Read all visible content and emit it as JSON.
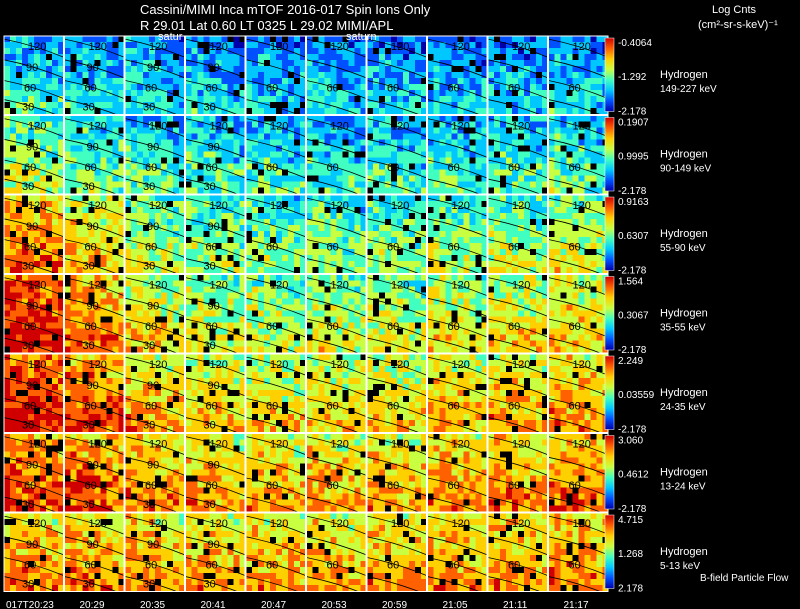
{
  "header": {
    "line1": "Cassini/MIMI Inca mTOF  2016-017   Spin   Ions Only",
    "line2": "R         29.01 Lat 0.60 LT 0325 L          29.02  MIMI/APL",
    "saturn_label": "satur",
    "saturn_label2": "saturn",
    "units_title": "Log Cnts",
    "units": "(cm²-sr-s-keV)⁻¹"
  },
  "footer": {
    "legend_note": "B-field Particle Flow"
  },
  "colors": {
    "background": "#000000",
    "text": "#ffffff",
    "colormap": [
      "#0000aa",
      "#0050ff",
      "#00c8ff",
      "#40ffc0",
      "#c8ff40",
      "#ffd000",
      "#ff6000",
      "#d00000"
    ]
  },
  "chart_data": {
    "type": "heatmap",
    "time_labels": [
      "017T20:23",
      "20:29",
      "20:35",
      "20:41",
      "20:47",
      "20:53",
      "20:59",
      "21:05",
      "21:11",
      "21:17"
    ],
    "contour_labels": [
      "120",
      "90",
      "60",
      "30"
    ],
    "channels": [
      {
        "species": "Hydrogen",
        "energy": "149-227 keV",
        "cmax": "-0.4064",
        "cmid": "-1.292",
        "cmin": "-2.178",
        "level": [
          0.3,
          0.28,
          0.26,
          0.25,
          0.24,
          0.24,
          0.23,
          0.23,
          0.23,
          0.24
        ]
      },
      {
        "species": "Hydrogen",
        "energy": "90-149 keV",
        "cmax": "0.1907",
        "cmid": "0.9995",
        "cmin": "-2.178",
        "level": [
          0.42,
          0.38,
          0.34,
          0.32,
          0.31,
          0.3,
          0.31,
          0.32,
          0.33,
          0.35
        ]
      },
      {
        "species": "Hydrogen",
        "energy": "55-90 keV",
        "cmax": "0.9163",
        "cmid": "0.6307",
        "cmin": "-2.178",
        "level": [
          0.7,
          0.58,
          0.46,
          0.42,
          0.4,
          0.4,
          0.41,
          0.43,
          0.45,
          0.48
        ]
      },
      {
        "species": "Hydrogen",
        "energy": "35-55 keV",
        "cmax": "1.564",
        "cmid": "0.3067",
        "cmin": "-2.178",
        "level": [
          0.82,
          0.7,
          0.55,
          0.5,
          0.48,
          0.48,
          0.49,
          0.52,
          0.55,
          0.58
        ]
      },
      {
        "species": "Hydrogen",
        "energy": "24-35 keV",
        "cmax": "2.249",
        "cmid": "0.03559",
        "cmin": "-2.178",
        "level": [
          0.82,
          0.74,
          0.62,
          0.58,
          0.56,
          0.56,
          0.57,
          0.6,
          0.62,
          0.64
        ]
      },
      {
        "species": "Hydrogen",
        "energy": "13-24 keV",
        "cmax": "3.060",
        "cmid": "0.4612",
        "cmin": "-2.178",
        "level": [
          0.74,
          0.72,
          0.66,
          0.63,
          0.62,
          0.62,
          0.63,
          0.65,
          0.66,
          0.68
        ]
      },
      {
        "species": "Hydrogen",
        "energy": "5-13 keV",
        "cmax": "4.715",
        "cmid": "1.268",
        "cmin": "2.178",
        "level": [
          0.66,
          0.66,
          0.64,
          0.63,
          0.62,
          0.63,
          0.64,
          0.65,
          0.66,
          0.67
        ]
      }
    ]
  }
}
